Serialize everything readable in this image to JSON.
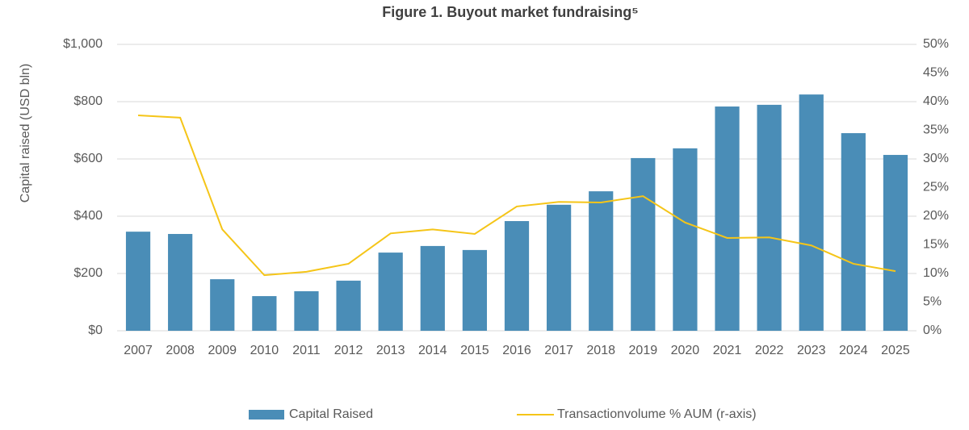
{
  "chart_data": {
    "type": "bar-line",
    "title": "Figure 1. Buyout market fundraising⁵",
    "y_label": "Capital raised (USD bln)",
    "categories": [
      "2007",
      "2008",
      "2009",
      "2010",
      "2011",
      "2012",
      "2013",
      "2014",
      "2015",
      "2016",
      "2017",
      "2018",
      "2019",
      "2020",
      "2021",
      "2022",
      "2023",
      "2024",
      "2025"
    ],
    "series": [
      {
        "name": "Capital Raised",
        "type": "bar",
        "color": "#4a8db7",
        "values": [
          346,
          338,
          180,
          121,
          138,
          175,
          273,
          296,
          282,
          383,
          440,
          487,
          603,
          637,
          783,
          789,
          825,
          690,
          614
        ]
      },
      {
        "name": "Transactionvolume % AUM (r-axis)",
        "type": "line",
        "color": "#f5c518",
        "axis": "y2",
        "values": [
          37.6,
          37.2,
          17.7,
          9.7,
          10.3,
          11.7,
          17.0,
          17.7,
          16.9,
          21.7,
          22.5,
          22.4,
          23.5,
          18.9,
          16.2,
          16.3,
          14.9,
          11.7,
          10.4
        ]
      }
    ],
    "ylim": [
      0,
      1000
    ],
    "yticks": [
      {
        "value": 0,
        "label": "$0"
      },
      {
        "value": 200,
        "label": "$200"
      },
      {
        "value": 400,
        "label": "$400"
      },
      {
        "value": 600,
        "label": "$600"
      },
      {
        "value": 800,
        "label": "$800"
      },
      {
        "value": 1000,
        "label": "$1,000"
      }
    ],
    "y2lim": [
      0,
      50
    ],
    "y2ticks": [
      {
        "value": 0,
        "label": "0%"
      },
      {
        "value": 5,
        "label": "5%"
      },
      {
        "value": 10,
        "label": "10%"
      },
      {
        "value": 15,
        "label": "15%"
      },
      {
        "value": 20,
        "label": "20%"
      },
      {
        "value": 25,
        "label": "25%"
      },
      {
        "value": 30,
        "label": "30%"
      },
      {
        "value": 35,
        "label": "35%"
      },
      {
        "value": 40,
        "label": "40%"
      },
      {
        "value": 45,
        "label": "45%"
      },
      {
        "value": 50,
        "label": "50%"
      }
    ],
    "grid": true,
    "legend": "bottom"
  }
}
